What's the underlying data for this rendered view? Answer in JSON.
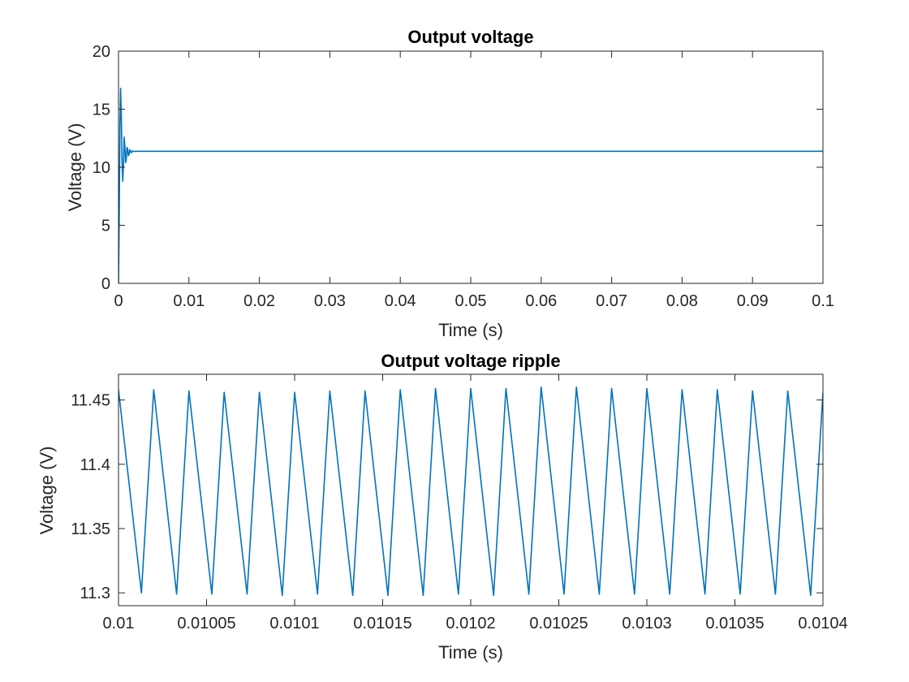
{
  "chart_data": [
    {
      "type": "line",
      "title": "Output voltage",
      "xlabel": "Time (s)",
      "ylabel": "Voltage (V)",
      "xlim": [
        0,
        0.1
      ],
      "ylim": [
        0,
        20
      ],
      "xticks": [
        0,
        0.01,
        0.02,
        0.03,
        0.04,
        0.05,
        0.06,
        0.07,
        0.08,
        0.09,
        0.1
      ],
      "xtick_labels": [
        "0",
        "0.01",
        "0.02",
        "0.03",
        "0.04",
        "0.05",
        "0.06",
        "0.07",
        "0.08",
        "0.09",
        "0.1"
      ],
      "yticks": [
        0,
        5,
        10,
        15,
        20
      ],
      "ytick_labels": [
        "0",
        "5",
        "10",
        "15",
        "20"
      ],
      "grid": false,
      "line_color": "#0072BD",
      "series": [
        {
          "x": [
            0,
            0.0001,
            0.0002,
            0.0003,
            0.0004,
            0.0005,
            0.0006,
            0.0007,
            0.0008,
            0.0009,
            0.001,
            0.0011,
            0.0012,
            0.0013,
            0.0014,
            0.0015,
            0.0016,
            0.0017,
            0.0018,
            0.0019,
            0.002,
            0.0022,
            0.0024,
            0.0026,
            0.0028,
            0.003,
            0.004,
            0.005,
            0.1
          ],
          "y": [
            0,
            5.5,
            13.5,
            16.8,
            14.5,
            10.5,
            8.8,
            10.2,
            12.6,
            11.8,
            10.4,
            10.6,
            11.7,
            11.6,
            11.0,
            11.1,
            11.5,
            11.45,
            11.25,
            11.3,
            11.4,
            11.35,
            11.38,
            11.37,
            11.38,
            11.38,
            11.38,
            11.38,
            11.38
          ]
        }
      ]
    },
    {
      "type": "line",
      "title": "Output voltage ripple",
      "xlabel": "Time (s)",
      "ylabel": "Voltage (V)",
      "xlim": [
        0.01,
        0.0104
      ],
      "ylim": [
        11.29,
        11.47
      ],
      "xticks": [
        0.01,
        0.01005,
        0.0101,
        0.01015,
        0.0102,
        0.01025,
        0.0103,
        0.01035,
        0.0104
      ],
      "xtick_labels": [
        "0.01",
        "0.01005",
        "0.0101",
        "0.01015",
        "0.0102",
        "0.01025",
        "0.0103",
        "0.01035",
        "0.0104"
      ],
      "yticks": [
        11.3,
        11.35,
        11.4,
        11.45
      ],
      "ytick_labels": [
        "11.3",
        "11.35",
        "11.4",
        "11.45"
      ],
      "grid": false,
      "line_color": "#0072BD",
      "series": [
        {
          "x": [
            0.01,
            0.010013,
            0.01002,
            0.010033,
            0.01004,
            0.010053,
            0.01006,
            0.010073,
            0.01008,
            0.010093,
            0.0101,
            0.010113,
            0.01012,
            0.010133,
            0.01014,
            0.010153,
            0.01016,
            0.010173,
            0.01018,
            0.010193,
            0.0102,
            0.010213,
            0.01022,
            0.010233,
            0.01024,
            0.010253,
            0.01026,
            0.010273,
            0.01028,
            0.010293,
            0.0103,
            0.010313,
            0.01032,
            0.010333,
            0.01034,
            0.010353,
            0.01036,
            0.010373,
            0.01038,
            0.010393,
            0.0104
          ],
          "y": [
            11.458,
            11.3,
            11.458,
            11.299,
            11.457,
            11.299,
            11.456,
            11.299,
            11.456,
            11.298,
            11.456,
            11.299,
            11.457,
            11.298,
            11.457,
            11.298,
            11.458,
            11.298,
            11.459,
            11.299,
            11.459,
            11.298,
            11.459,
            11.299,
            11.46,
            11.299,
            11.46,
            11.299,
            11.459,
            11.299,
            11.459,
            11.299,
            11.458,
            11.299,
            11.458,
            11.299,
            11.457,
            11.299,
            11.457,
            11.298,
            11.456
          ]
        }
      ]
    }
  ]
}
